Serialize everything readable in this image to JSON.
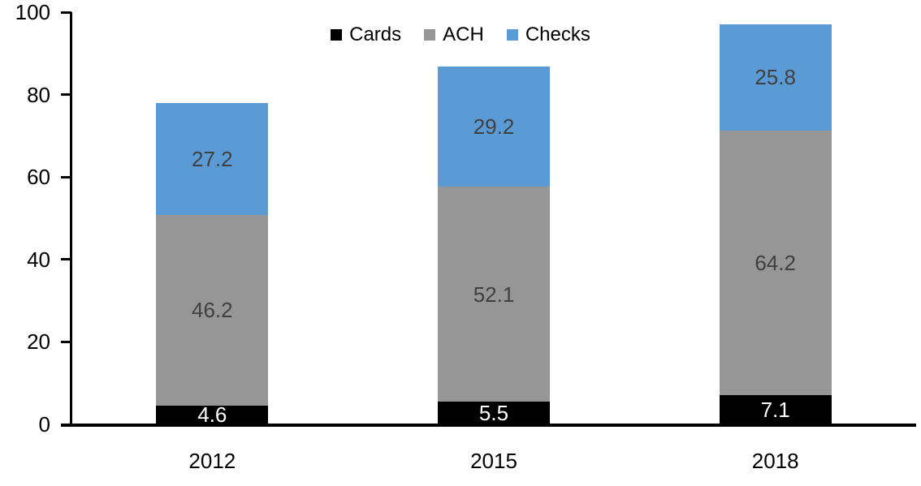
{
  "chart_data": {
    "type": "bar",
    "stacked": true,
    "title": "",
    "xlabel": "",
    "ylabel": "",
    "categories": [
      "2012",
      "2015",
      "2018"
    ],
    "series": [
      {
        "name": "Cards",
        "color": "#000000",
        "label_color": "#FFFFFF",
        "values": [
          4.6,
          5.5,
          7.1
        ]
      },
      {
        "name": "ACH",
        "color": "#969696",
        "label_color": "#404040",
        "values": [
          46.2,
          52.1,
          64.2
        ]
      },
      {
        "name": "Checks",
        "color": "#5B9BD5",
        "label_color": "#404040",
        "values": [
          27.2,
          29.2,
          25.8
        ]
      }
    ],
    "ylim": [
      0,
      100
    ],
    "yticks": [
      0,
      20,
      40,
      60,
      80,
      100
    ],
    "grid": false,
    "data_labels": true,
    "legend_position": "top-center"
  },
  "colors": {
    "background": "#FFFFFF",
    "axis": "#000000",
    "cards": "#000000",
    "ach": "#969696",
    "checks": "#5B9BD5",
    "label_dark": "#404040",
    "label_light": "#FFFFFF"
  }
}
